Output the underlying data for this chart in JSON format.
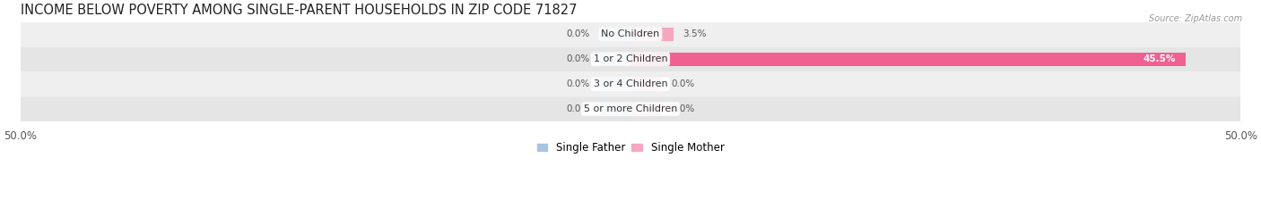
{
  "title": "INCOME BELOW POVERTY AMONG SINGLE-PARENT HOUSEHOLDS IN ZIP CODE 71827",
  "source": "Source: ZipAtlas.com",
  "categories": [
    "No Children",
    "1 or 2 Children",
    "3 or 4 Children",
    "5 or more Children"
  ],
  "single_father": [
    0.0,
    0.0,
    0.0,
    0.0
  ],
  "single_mother": [
    3.5,
    45.5,
    0.0,
    0.0
  ],
  "xlim": [
    -50,
    50
  ],
  "xticklabels_left": "50.0%",
  "xticklabels_right": "50.0%",
  "father_color": "#a8c4e0",
  "mother_color_light": "#f4a8bf",
  "mother_color_dark": "#f06090",
  "bar_height": 0.52,
  "row_colors": [
    "#efefef",
    "#e5e5e5",
    "#efefef",
    "#e5e5e5"
  ],
  "title_fontsize": 10.5,
  "label_fontsize": 8,
  "tick_fontsize": 8.5,
  "legend_fontsize": 8.5,
  "value_fontsize": 7.5
}
